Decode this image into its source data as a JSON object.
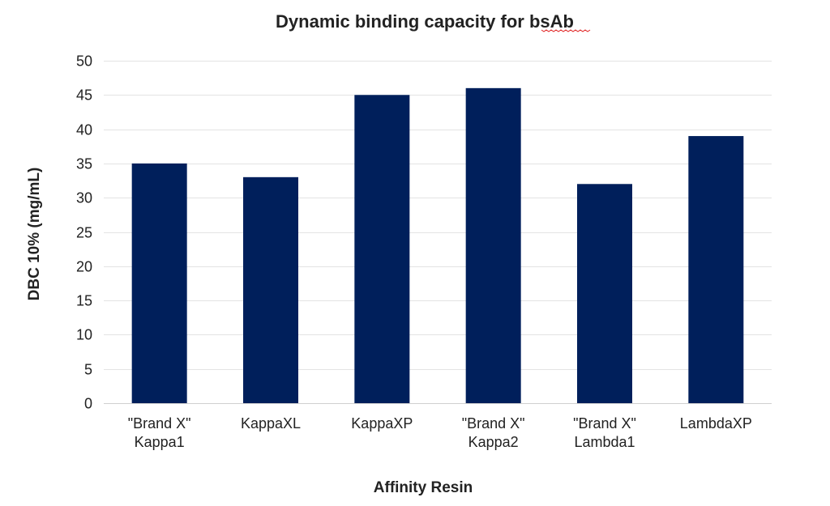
{
  "chart_data": {
    "type": "bar",
    "title_prefix": "Dynamic binding capacity for ",
    "title_suffix": "bsAb",
    "xlabel": "Affinity Resin",
    "ylabel": "DBC 10% (mg/mL)",
    "categories": [
      [
        "\"Brand X\"",
        "Kappa1"
      ],
      [
        "KappaXL"
      ],
      [
        "KappaXP"
      ],
      [
        "\"Brand X\"",
        "Kappa2"
      ],
      [
        "\"Brand X\"",
        "Lambda1"
      ],
      [
        "LambdaXP"
      ]
    ],
    "values": [
      35,
      33,
      45,
      46,
      32,
      39
    ],
    "ylim": [
      0,
      50
    ],
    "yticks": [
      0,
      5,
      10,
      15,
      20,
      25,
      30,
      35,
      40,
      45,
      50
    ],
    "grid": true,
    "legend": "none",
    "bar_color": "#001f5b"
  }
}
